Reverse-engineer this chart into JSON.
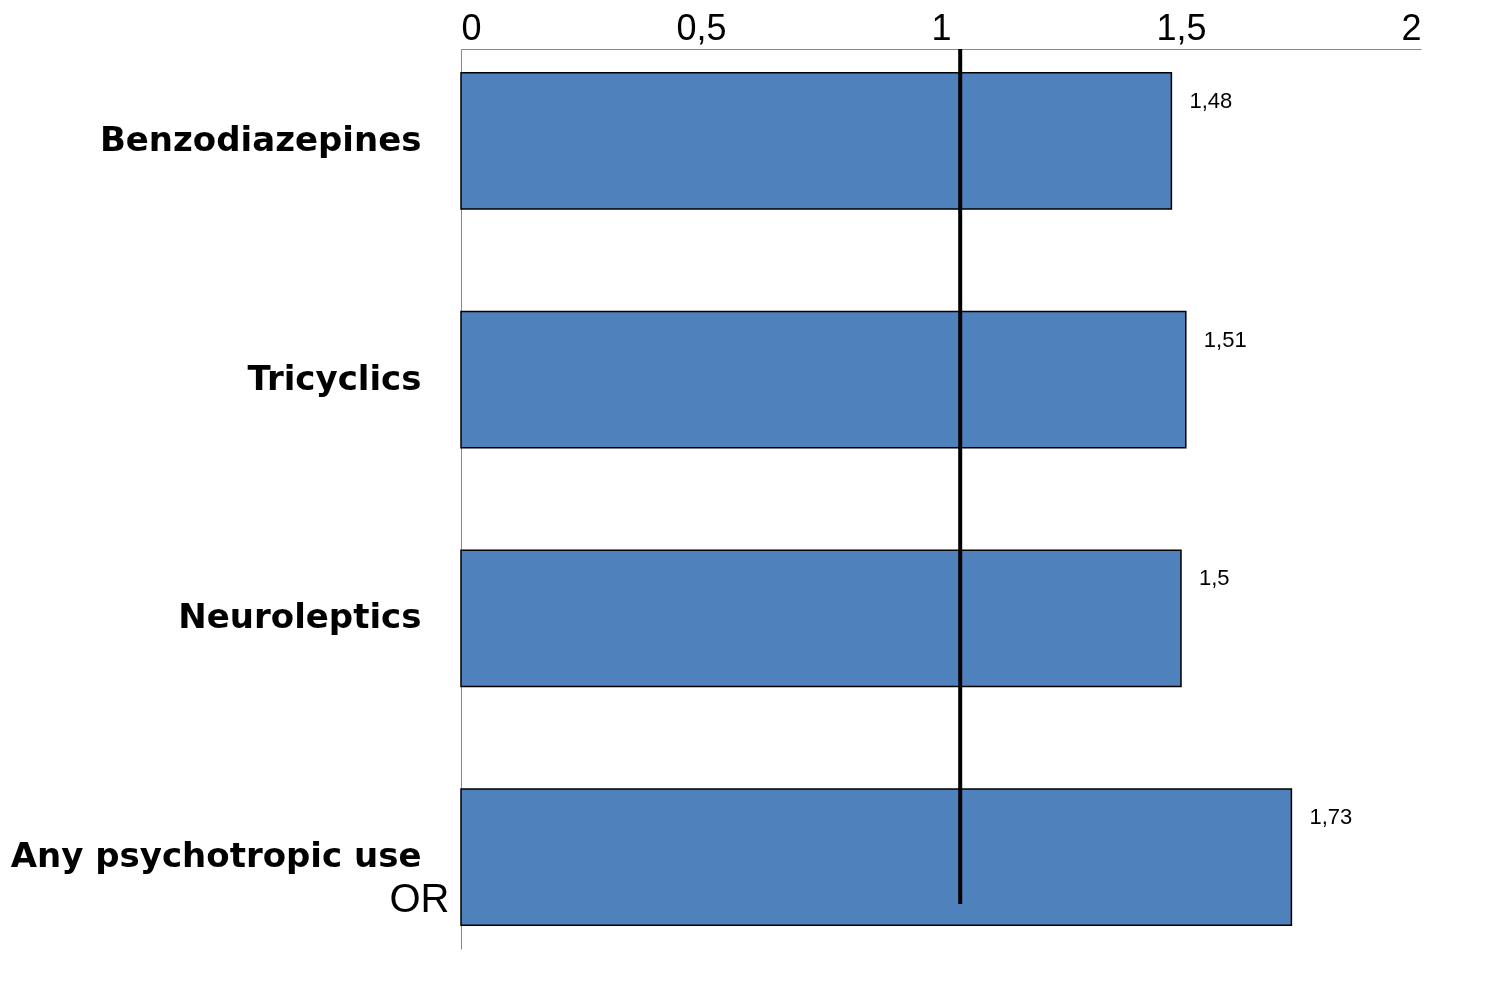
{
  "chart_data": {
    "type": "bar",
    "orientation": "horizontal",
    "xlabel": "OR",
    "categories": [
      "Benzodiazepines",
      "Tricyclics",
      "Neuroleptics",
      "Any psychotropic use"
    ],
    "values": [
      1.48,
      1.51,
      1.5,
      1.73
    ],
    "value_labels": [
      "1,48",
      "1,51",
      "1,5",
      "1,73"
    ],
    "color": "#4f81bd",
    "xlim": [
      0,
      2
    ],
    "xticks": [
      {
        "value": 0,
        "label": "0"
      },
      {
        "value": 0.5,
        "label": "0,5"
      },
      {
        "value": 1,
        "label": "1"
      },
      {
        "value": 1.5,
        "label": "1,5"
      },
      {
        "value": 2,
        "label": "2"
      }
    ],
    "ref_lines": [
      {
        "axis": "x",
        "value": 1.04,
        "color": "#000000"
      }
    ],
    "grid": false
  }
}
